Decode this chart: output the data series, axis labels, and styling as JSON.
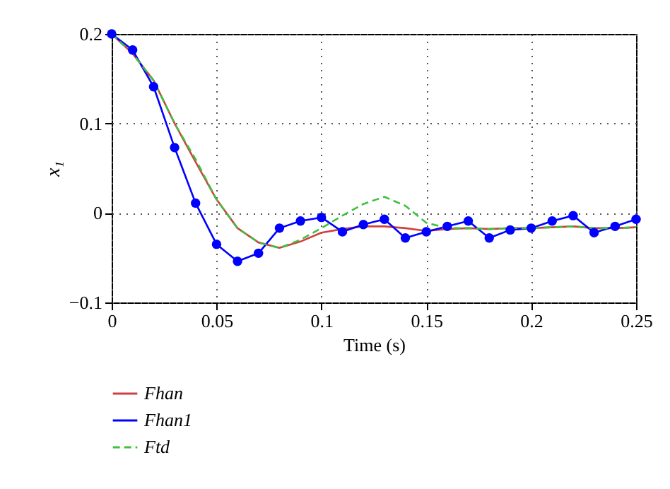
{
  "chart_data": {
    "type": "line",
    "xlabel": "Time (s)",
    "ylabel": "x₁",
    "x": [
      0,
      0.01,
      0.02,
      0.03,
      0.04,
      0.05,
      0.06,
      0.07,
      0.08,
      0.09,
      0.1,
      0.11,
      0.12,
      0.13,
      0.14,
      0.15,
      0.16,
      0.17,
      0.18,
      0.19,
      0.2,
      0.21,
      0.22,
      0.23,
      0.24,
      0.25
    ],
    "series": [
      {
        "name": "Fhan",
        "color": "#d04040",
        "marker": "none",
        "line_style": "solid",
        "values": [
          0.2,
          0.178,
          0.148,
          0.1,
          0.057,
          0.015,
          -0.017,
          -0.033,
          -0.039,
          -0.032,
          -0.022,
          -0.018,
          -0.015,
          -0.015,
          -0.017,
          -0.02,
          -0.018,
          -0.017,
          -0.018,
          -0.017,
          -0.017,
          -0.016,
          -0.015,
          -0.017,
          -0.017,
          -0.016
        ]
      },
      {
        "name": "Fhan1",
        "color": "#0000ff",
        "marker": "circle",
        "line_style": "solid",
        "values": [
          0.2,
          0.182,
          0.141,
          0.073,
          0.011,
          -0.035,
          -0.054,
          -0.045,
          -0.017,
          -0.009,
          -0.005,
          -0.021,
          -0.013,
          -0.007,
          -0.028,
          -0.021,
          -0.015,
          -0.009,
          -0.028,
          -0.019,
          -0.017,
          -0.009,
          -0.003,
          -0.022,
          -0.015,
          -0.007
        ]
      },
      {
        "name": "Ftd",
        "color": "#40c040",
        "marker": "none",
        "line_style": "dashed",
        "values": [
          0.2,
          0.178,
          0.148,
          0.1,
          0.06,
          0.015,
          -0.017,
          -0.033,
          -0.039,
          -0.03,
          -0.017,
          -0.003,
          0.01,
          0.018,
          0.008,
          -0.011,
          -0.017,
          -0.017,
          -0.018,
          -0.017,
          -0.017,
          -0.016,
          -0.015,
          -0.017,
          -0.017,
          -0.016
        ]
      }
    ],
    "xlim": [
      0,
      0.25
    ],
    "xticks": [
      0,
      0.05,
      0.1,
      0.15,
      0.2,
      0.25
    ],
    "ylim": [
      -0.1,
      0.2
    ],
    "yticks": [
      -0.1,
      0,
      0.1,
      0.2
    ],
    "grid": true,
    "legend": "bottom left"
  }
}
